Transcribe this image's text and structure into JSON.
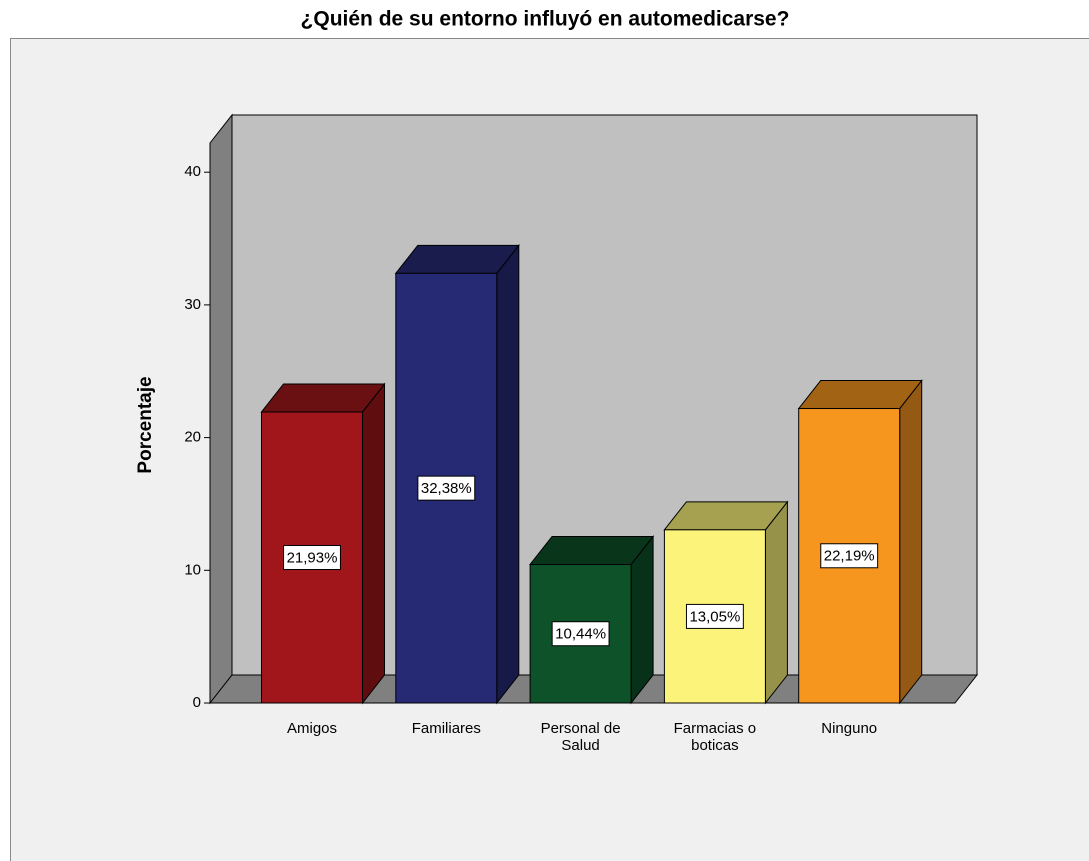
{
  "chart_data": {
    "type": "bar3d",
    "title": "¿Quién de su entorno influyó en automedicarse?",
    "y_label": "Porcentaje",
    "categories": [
      "Amigos",
      "Familiares",
      "Personal de Salud",
      "Farmacias o boticas",
      "Ninguno"
    ],
    "values": [
      21.93,
      32.38,
      10.44,
      13.05,
      22.19
    ],
    "value_labels": [
      "21,93%",
      "32,38%",
      "10,44%",
      "13,05%",
      "22,19%"
    ],
    "colors": [
      "#a0161b",
      "#262a74",
      "#0e5229",
      "#fbf37a",
      "#f7961f"
    ],
    "ylim": [
      0,
      42.2
    ],
    "yticks": [
      0,
      10,
      20,
      30,
      40
    ]
  }
}
